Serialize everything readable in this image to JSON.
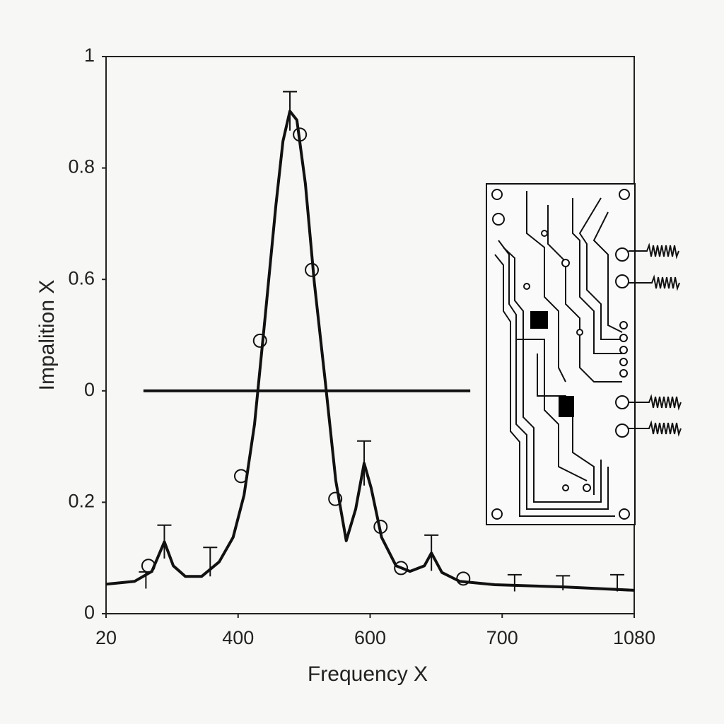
{
  "chart_data": {
    "type": "line",
    "xlabel": "Frequency X",
    "ylabel": "Impalition X",
    "xlim": [
      20,
      1080
    ],
    "xticks": [
      {
        "value": 20,
        "label": "20"
      },
      {
        "value": 285,
        "label": "400"
      },
      {
        "value": 550,
        "label": "600"
      },
      {
        "value": 815,
        "label": "700"
      },
      {
        "value": 1080,
        "label": "1080"
      }
    ],
    "ylim": [
      0,
      1
    ],
    "yticks": [
      0,
      0.2,
      {
        "value": 0.4,
        "label": "0"
      },
      0.6,
      0.8,
      1
    ],
    "color": "#111111",
    "series": [
      {
        "color": "#111111",
        "x": [
          20,
          77,
          112,
          137,
          155,
          179,
          212,
          247,
          275,
          297,
          318,
          339,
          361,
          375,
          389,
          403,
          420,
          438,
          460,
          481,
          502,
          521,
          538,
          552,
          573,
          602,
          630,
          659,
          673,
          694,
          730,
          800,
          942,
          1080
        ],
        "values": [
          0.053,
          0.058,
          0.076,
          0.129,
          0.086,
          0.067,
          0.067,
          0.093,
          0.137,
          0.213,
          0.34,
          0.53,
          0.734,
          0.848,
          0.902,
          0.886,
          0.772,
          0.594,
          0.416,
          0.239,
          0.131,
          0.188,
          0.27,
          0.226,
          0.137,
          0.086,
          0.076,
          0.086,
          0.109,
          0.074,
          0.058,
          0.052,
          0.048,
          0.042
        ]
      }
    ],
    "markers": {
      "x": [
        105,
        291,
        329,
        409,
        433,
        480,
        571,
        612,
        737
      ],
      "values": [
        0.086,
        0.247,
        0.49,
        0.86,
        0.617,
        0.206,
        0.156,
        0.082,
        0.063
      ]
    },
    "errorbars": {
      "x": [
        100,
        137,
        229,
        389,
        538,
        673,
        840,
        937,
        1046
      ],
      "values": [
        0.06,
        0.129,
        0.093,
        0.902,
        0.27,
        0.109,
        0.055,
        0.055,
        0.055
      ],
      "errors": [
        0.015,
        0.03,
        0.026,
        0.035,
        0.04,
        0.032,
        0.015,
        0.013,
        0.015
      ]
    },
    "hline": {
      "y": 0.4,
      "xmin": 95,
      "xmax": 751
    }
  }
}
